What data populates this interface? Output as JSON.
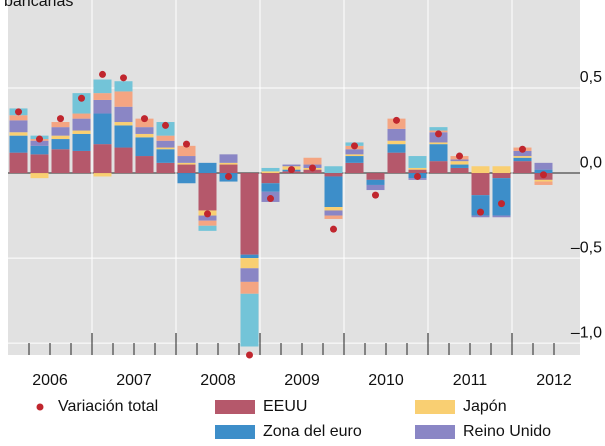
{
  "chart_data": {
    "type": "bar",
    "stacked": true,
    "title": "bancarias",
    "years": [
      "2006",
      "2007",
      "2008",
      "2009",
      "2010",
      "2011",
      "2012"
    ],
    "quarters_per_year": 4,
    "ylim": [
      -1.07,
      1.0
    ],
    "yticks": [
      {
        "value": 0.5,
        "label": "0,5"
      },
      {
        "value": 0,
        "label": "0,0"
      },
      {
        "value": -0.5,
        "label": "–0,5"
      },
      {
        "value": -1,
        "label": "–1,0"
      }
    ],
    "grid": true,
    "series": [
      {
        "name": "EEUU",
        "color": "#b5586b",
        "values": [
          0.12,
          0.11,
          0.14,
          0.13,
          0.17,
          0.15,
          0.1,
          0.06,
          0.05,
          -0.22,
          0.05,
          -0.48,
          -0.06,
          0.01,
          0.02,
          -0.02,
          0.06,
          -0.04,
          0.12,
          0.02,
          0.07,
          0.03,
          -0.13,
          -0.03,
          0.07,
          -0.04
        ]
      },
      {
        "name": "Zona del euro",
        "color": "#3d8ec9",
        "values": [
          0.1,
          0.05,
          0.06,
          0.1,
          0.18,
          0.13,
          0.11,
          0.08,
          -0.06,
          0.06,
          -0.05,
          -0.02,
          -0.05,
          0.01,
          0.0,
          -0.18,
          0.04,
          -0.03,
          0.05,
          -0.03,
          0.1,
          0.02,
          -0.12,
          -0.22,
          0.02,
          0.02
        ]
      },
      {
        "name": "Japón",
        "color": "#f9cf72",
        "values": [
          0.02,
          -0.03,
          0.02,
          0.02,
          -0.02,
          0.02,
          0.02,
          0.01,
          0.01,
          -0.03,
          0.01,
          -0.06,
          0.01,
          0.02,
          0.01,
          -0.02,
          0.01,
          0.0,
          0.02,
          0.01,
          0.01,
          0.02,
          0.04,
          0.04,
          0.01,
          -0.01
        ]
      },
      {
        "name": "Reino Unido",
        "color": "#8a86c5",
        "values": [
          0.07,
          0.03,
          0.05,
          0.07,
          0.08,
          0.09,
          0.04,
          0.04,
          0.04,
          -0.03,
          0.05,
          -0.08,
          -0.06,
          0.01,
          0.02,
          -0.03,
          0.03,
          -0.03,
          0.07,
          -0.01,
          0.06,
          0.01,
          -0.01,
          -0.01,
          0.03,
          0.04
        ]
      },
      {
        "color": "#f4a582",
        "values": [
          0.03,
          0.01,
          0.03,
          0.03,
          0.04,
          0.09,
          0.05,
          0.03,
          0.06,
          -0.03,
          0.0,
          -0.07,
          0.0,
          0.0,
          0.04,
          -0.02,
          0.02,
          0.0,
          0.06,
          0.0,
          0.01,
          0.02,
          0.0,
          0.0,
          0.02,
          -0.02
        ]
      },
      {
        "color": "#73c4d8",
        "values": [
          0.04,
          0.02,
          0.0,
          0.12,
          0.08,
          0.06,
          0.0,
          0.08,
          0.0,
          -0.03,
          0.0,
          -0.31,
          0.02,
          0.0,
          0.0,
          0.04,
          0.02,
          0.0,
          0.0,
          0.07,
          0.02,
          0.0,
          0.0,
          0.0,
          0.0,
          0.0
        ]
      }
    ],
    "markers": {
      "name": "Variación total",
      "color": "#c0262e",
      "values": [
        0.36,
        0.2,
        0.32,
        0.44,
        0.58,
        0.56,
        0.32,
        0.28,
        0.17,
        -0.24,
        -0.02,
        -1.07,
        -0.15,
        0.02,
        0.03,
        -0.33,
        0.16,
        -0.13,
        0.31,
        -0.02,
        0.23,
        0.1,
        -0.23,
        -0.18,
        0.14,
        -0.01
      ]
    }
  }
}
